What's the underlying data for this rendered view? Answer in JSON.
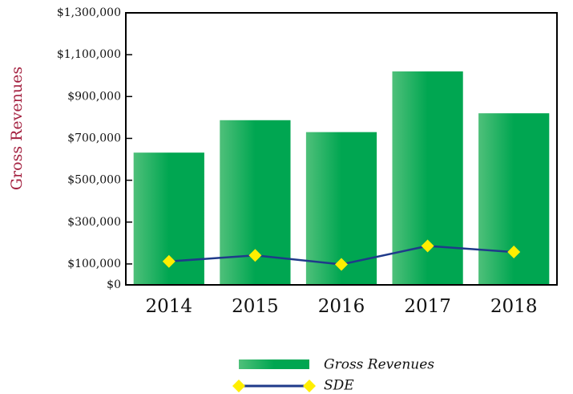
{
  "chart_data": {
    "type": "bar-line",
    "ylabel": "Gross Revenues",
    "categories": [
      "2014",
      "2015",
      "2016",
      "2017",
      "2018"
    ],
    "series": [
      {
        "name": "Gross Revenues",
        "type": "bar",
        "color": "#00a651",
        "values": [
          632000,
          787000,
          730000,
          1020000,
          820000
        ]
      },
      {
        "name": "SDE",
        "type": "line",
        "color": "#1f3a8a",
        "marker_color": "#ffee00",
        "values": [
          112000,
          141000,
          98000,
          186000,
          157000
        ]
      }
    ],
    "ylim": [
      0,
      1300000
    ],
    "yticks": [
      {
        "value": 0,
        "label": "$0"
      },
      {
        "value": 100000,
        "label": "$100,000"
      },
      {
        "value": 300000,
        "label": "$300,000"
      },
      {
        "value": 500000,
        "label": "$500,000"
      },
      {
        "value": 700000,
        "label": "$700,000"
      },
      {
        "value": 900000,
        "label": "$900,000"
      },
      {
        "value": 1100000,
        "label": "$1,100,000"
      },
      {
        "value": 1300000,
        "label": "$1,300,000"
      }
    ],
    "legend": "bottom"
  }
}
